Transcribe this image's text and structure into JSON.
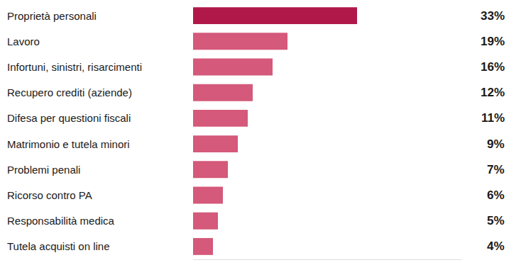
{
  "chart_data": {
    "type": "bar",
    "orientation": "horizontal",
    "categories": [
      "Proprietà personali",
      "Lavoro",
      "Infortuni, sinistri, risarcimenti",
      "Recupero crediti (aziende)",
      "Difesa per questioni fiscali",
      "Matrimonio e tutela minori",
      "Problemi penali",
      "Ricorso contro PA",
      "Responsabilità medica",
      "Tutela acquisti on line"
    ],
    "values": [
      33,
      19,
      16,
      12,
      11,
      9,
      7,
      6,
      5,
      4
    ],
    "value_labels": [
      "33%",
      "19%",
      "16%",
      "12%",
      "11%",
      "9%",
      "7%",
      "6%",
      "5%",
      "4%"
    ],
    "data_labels": true,
    "colors": [
      "#b0184a",
      "#d4597a",
      "#d4597a",
      "#d4597a",
      "#d4597a",
      "#d4597a",
      "#d4597a",
      "#d4597a",
      "#d4597a",
      "#d4597a"
    ],
    "xlim": [
      0,
      54
    ],
    "tick_labels": "y",
    "grid": false
  }
}
